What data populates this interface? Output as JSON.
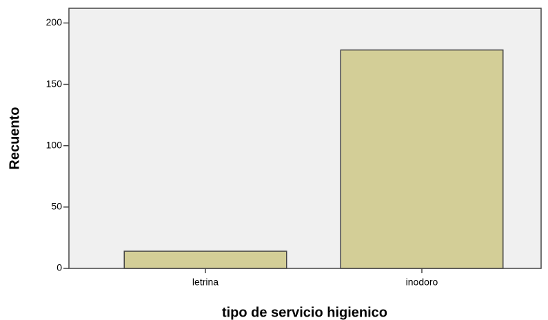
{
  "chart_data": {
    "type": "bar",
    "categories": [
      "letrina",
      "inodoro"
    ],
    "values": [
      14,
      178
    ],
    "color": "#d3ce97",
    "xlabel": "tipo de servicio higienico",
    "ylabel": "Recuento",
    "ylim": [
      0,
      212
    ],
    "yticks": [
      0,
      50,
      100,
      150,
      200
    ],
    "grid": false
  }
}
